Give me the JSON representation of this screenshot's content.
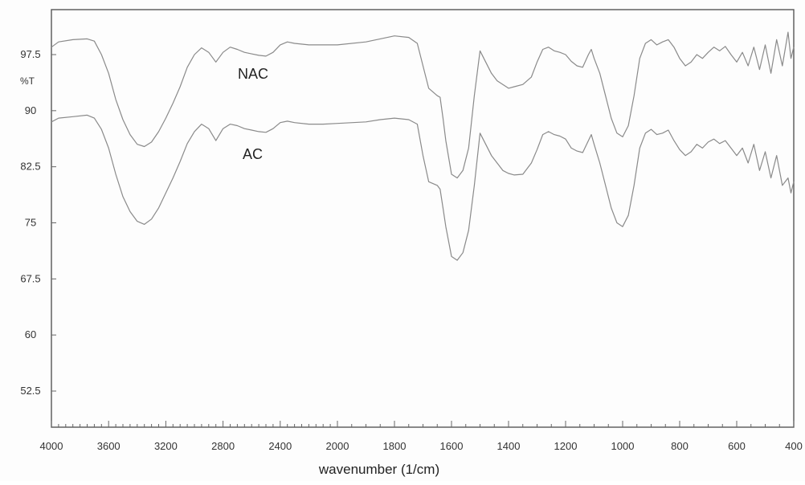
{
  "chart_data": {
    "type": "line",
    "title": "",
    "xlabel": "wavenumber (1/cm)",
    "ylabel": "%T",
    "xlim": [
      4000,
      400
    ],
    "ylim": [
      47.5,
      102.5
    ],
    "x_reversed": true,
    "grid": false,
    "x_ticks": [
      4000,
      3600,
      3200,
      2800,
      2400,
      2000,
      1800,
      1600,
      1400,
      1200,
      1000,
      800,
      600,
      400
    ],
    "y_ticks": [
      97.5,
      90,
      82.5,
      75,
      67.5,
      60,
      52.5
    ],
    "line_color": "#8a8a8a",
    "series": [
      {
        "name": "NAC",
        "points": [
          [
            4000,
            98.5
          ],
          [
            3950,
            99.2
          ],
          [
            3850,
            99.5
          ],
          [
            3750,
            99.6
          ],
          [
            3700,
            99.3
          ],
          [
            3650,
            97.5
          ],
          [
            3600,
            95.0
          ],
          [
            3550,
            91.5
          ],
          [
            3500,
            88.8
          ],
          [
            3450,
            86.8
          ],
          [
            3400,
            85.5
          ],
          [
            3350,
            85.2
          ],
          [
            3300,
            85.8
          ],
          [
            3250,
            87.2
          ],
          [
            3200,
            89.0
          ],
          [
            3150,
            91.0
          ],
          [
            3100,
            93.2
          ],
          [
            3050,
            95.8
          ],
          [
            3000,
            97.5
          ],
          [
            2950,
            98.4
          ],
          [
            2900,
            97.8
          ],
          [
            2850,
            96.5
          ],
          [
            2800,
            97.8
          ],
          [
            2750,
            98.5
          ],
          [
            2700,
            98.2
          ],
          [
            2650,
            97.8
          ],
          [
            2600,
            97.6
          ],
          [
            2550,
            97.4
          ],
          [
            2500,
            97.3
          ],
          [
            2450,
            97.8
          ],
          [
            2400,
            98.8
          ],
          [
            2350,
            99.2
          ],
          [
            2300,
            99.0
          ],
          [
            2200,
            98.8
          ],
          [
            2100,
            98.8
          ],
          [
            2000,
            98.8
          ],
          [
            1900,
            99.2
          ],
          [
            1850,
            99.6
          ],
          [
            1800,
            100.0
          ],
          [
            1750,
            99.8
          ],
          [
            1720,
            99.0
          ],
          [
            1700,
            96.0
          ],
          [
            1680,
            93.0
          ],
          [
            1650,
            92.0
          ],
          [
            1640,
            91.8
          ],
          [
            1630,
            89.0
          ],
          [
            1620,
            86.0
          ],
          [
            1600,
            81.5
          ],
          [
            1580,
            81.0
          ],
          [
            1560,
            82.0
          ],
          [
            1540,
            85.0
          ],
          [
            1520,
            92.0
          ],
          [
            1500,
            98.0
          ],
          [
            1480,
            96.5
          ],
          [
            1460,
            95.0
          ],
          [
            1440,
            94.0
          ],
          [
            1420,
            93.5
          ],
          [
            1400,
            93.0
          ],
          [
            1380,
            93.2
          ],
          [
            1350,
            93.5
          ],
          [
            1320,
            94.5
          ],
          [
            1300,
            96.5
          ],
          [
            1280,
            98.2
          ],
          [
            1260,
            98.5
          ],
          [
            1240,
            98.0
          ],
          [
            1220,
            97.8
          ],
          [
            1200,
            97.5
          ],
          [
            1180,
            96.6
          ],
          [
            1160,
            96.0
          ],
          [
            1140,
            95.8
          ],
          [
            1120,
            97.5
          ],
          [
            1110,
            98.2
          ],
          [
            1100,
            97.0
          ],
          [
            1080,
            95.0
          ],
          [
            1060,
            92.0
          ],
          [
            1040,
            89.0
          ],
          [
            1020,
            87.0
          ],
          [
            1000,
            86.5
          ],
          [
            980,
            88.0
          ],
          [
            960,
            92.0
          ],
          [
            940,
            97.0
          ],
          [
            920,
            99.0
          ],
          [
            900,
            99.5
          ],
          [
            880,
            98.8
          ],
          [
            860,
            99.2
          ],
          [
            840,
            99.5
          ],
          [
            820,
            98.5
          ],
          [
            800,
            97.0
          ],
          [
            780,
            96.0
          ],
          [
            760,
            96.5
          ],
          [
            740,
            97.5
          ],
          [
            720,
            97.0
          ],
          [
            700,
            97.8
          ],
          [
            680,
            98.5
          ],
          [
            660,
            98.0
          ],
          [
            640,
            98.6
          ],
          [
            620,
            97.5
          ],
          [
            600,
            96.5
          ],
          [
            580,
            97.8
          ],
          [
            560,
            96.0
          ],
          [
            540,
            98.5
          ],
          [
            520,
            95.5
          ],
          [
            500,
            98.8
          ],
          [
            480,
            95.0
          ],
          [
            460,
            99.5
          ],
          [
            440,
            96.0
          ],
          [
            420,
            100.5
          ],
          [
            410,
            97.0
          ],
          [
            400,
            98.5
          ]
        ]
      },
      {
        "name": "AC",
        "points": [
          [
            4000,
            88.5
          ],
          [
            3950,
            89.0
          ],
          [
            3850,
            89.2
          ],
          [
            3750,
            89.4
          ],
          [
            3700,
            89.0
          ],
          [
            3650,
            87.5
          ],
          [
            3600,
            85.0
          ],
          [
            3550,
            81.5
          ],
          [
            3500,
            78.5
          ],
          [
            3450,
            76.5
          ],
          [
            3400,
            75.2
          ],
          [
            3350,
            74.8
          ],
          [
            3300,
            75.5
          ],
          [
            3250,
            77.0
          ],
          [
            3200,
            79.0
          ],
          [
            3150,
            81.0
          ],
          [
            3100,
            83.2
          ],
          [
            3050,
            85.6
          ],
          [
            3000,
            87.2
          ],
          [
            2950,
            88.2
          ],
          [
            2900,
            87.6
          ],
          [
            2850,
            86.0
          ],
          [
            2800,
            87.6
          ],
          [
            2750,
            88.2
          ],
          [
            2700,
            88.0
          ],
          [
            2650,
            87.6
          ],
          [
            2600,
            87.4
          ],
          [
            2550,
            87.2
          ],
          [
            2500,
            87.1
          ],
          [
            2450,
            87.6
          ],
          [
            2400,
            88.4
          ],
          [
            2350,
            88.6
          ],
          [
            2300,
            88.4
          ],
          [
            2200,
            88.2
          ],
          [
            2100,
            88.2
          ],
          [
            2000,
            88.3
          ],
          [
            1900,
            88.5
          ],
          [
            1850,
            88.8
          ],
          [
            1800,
            89.0
          ],
          [
            1750,
            88.8
          ],
          [
            1720,
            88.2
          ],
          [
            1700,
            84.0
          ],
          [
            1680,
            80.5
          ],
          [
            1650,
            80.0
          ],
          [
            1640,
            79.5
          ],
          [
            1630,
            77.0
          ],
          [
            1620,
            74.5
          ],
          [
            1600,
            70.5
          ],
          [
            1580,
            70.0
          ],
          [
            1560,
            71.0
          ],
          [
            1540,
            74.0
          ],
          [
            1520,
            80.0
          ],
          [
            1500,
            87.0
          ],
          [
            1480,
            85.5
          ],
          [
            1460,
            84.0
          ],
          [
            1440,
            83.0
          ],
          [
            1420,
            82.0
          ],
          [
            1400,
            81.6
          ],
          [
            1380,
            81.4
          ],
          [
            1350,
            81.5
          ],
          [
            1320,
            83.0
          ],
          [
            1300,
            84.8
          ],
          [
            1280,
            86.8
          ],
          [
            1260,
            87.2
          ],
          [
            1240,
            86.8
          ],
          [
            1220,
            86.6
          ],
          [
            1200,
            86.2
          ],
          [
            1180,
            85.0
          ],
          [
            1160,
            84.6
          ],
          [
            1140,
            84.4
          ],
          [
            1120,
            86.0
          ],
          [
            1110,
            86.8
          ],
          [
            1100,
            85.5
          ],
          [
            1080,
            83.0
          ],
          [
            1060,
            80.0
          ],
          [
            1040,
            77.0
          ],
          [
            1020,
            75.0
          ],
          [
            1000,
            74.5
          ],
          [
            980,
            76.0
          ],
          [
            960,
            80.0
          ],
          [
            940,
            85.0
          ],
          [
            920,
            87.0
          ],
          [
            900,
            87.5
          ],
          [
            880,
            86.8
          ],
          [
            860,
            87.0
          ],
          [
            840,
            87.4
          ],
          [
            820,
            86.0
          ],
          [
            800,
            84.8
          ],
          [
            780,
            84.0
          ],
          [
            760,
            84.5
          ],
          [
            740,
            85.5
          ],
          [
            720,
            85.0
          ],
          [
            700,
            85.8
          ],
          [
            680,
            86.2
          ],
          [
            660,
            85.6
          ],
          [
            640,
            86.0
          ],
          [
            620,
            85.0
          ],
          [
            600,
            84.0
          ],
          [
            580,
            85.0
          ],
          [
            560,
            83.0
          ],
          [
            540,
            85.5
          ],
          [
            520,
            82.0
          ],
          [
            500,
            84.5
          ],
          [
            480,
            81.0
          ],
          [
            460,
            84.0
          ],
          [
            440,
            80.0
          ],
          [
            420,
            81.0
          ],
          [
            410,
            79.0
          ],
          [
            400,
            80.5
          ]
        ]
      }
    ]
  }
}
